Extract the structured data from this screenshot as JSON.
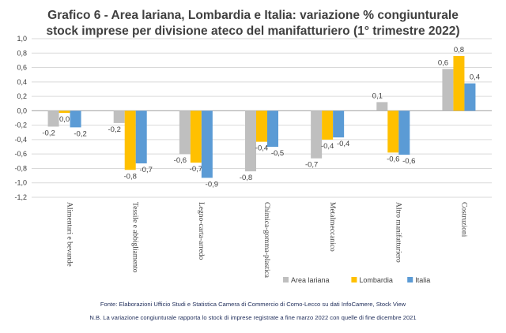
{
  "title_line1": "Grafico 6 - Area lariana, Lombardia e Italia: variazione % congiunturale",
  "title_line2": "stock imprese per divisione ateco del manifatturiero (1° trimestre 2022)",
  "footer": {
    "source": "Fonte: Elaborazioni Ufficio Studi e Statistica Camera di Commercio di Como-Lecco su dati InfoCamere, Stock View",
    "note": "N.B. La variazione congiunturale rapporta lo stock di imprese registrate a fine marzo 2022 con quelle di fine dicembre 2021"
  },
  "chart_data": {
    "type": "bar",
    "ylim": [
      -1.2,
      1.0
    ],
    "ytick_step": 0.2,
    "grid": true,
    "legend_position": "bottom-right",
    "categories": [
      "Alimentari e bevande",
      "Tessile e abbigliamento",
      "Legno-carta-arredo",
      "Chimica-gomma-plastica",
      "Metalmeccanico",
      "Altro manifatturiero",
      "Costruzioni"
    ],
    "series": [
      {
        "name": "Area lariana",
        "color": "#bfbfbf",
        "values": [
          -0.22,
          -0.17,
          -0.6,
          -0.84,
          -0.66,
          0.12,
          0.58
        ],
        "labels": [
          "-0,2",
          "-0,2",
          "-0,6",
          "-0,8",
          "-0,7",
          "0,1",
          "0,6"
        ]
      },
      {
        "name": "Lombardia",
        "color": "#ffc000",
        "values": [
          -0.03,
          -0.82,
          -0.72,
          -0.43,
          -0.4,
          -0.58,
          0.76
        ],
        "labels": [
          "0,0",
          "-0,8",
          "-0,7",
          "-0,4",
          "-0,4",
          "-0,6",
          "0,8"
        ]
      },
      {
        "name": "Italia",
        "color": "#5b9bd5",
        "values": [
          -0.23,
          -0.73,
          -0.93,
          -0.5,
          -0.37,
          -0.61,
          0.38
        ],
        "labels": [
          "-0,2",
          "-0,7",
          "-0,9",
          "-0,5",
          "-0,4",
          "-0,6",
          "0,4"
        ]
      }
    ]
  }
}
